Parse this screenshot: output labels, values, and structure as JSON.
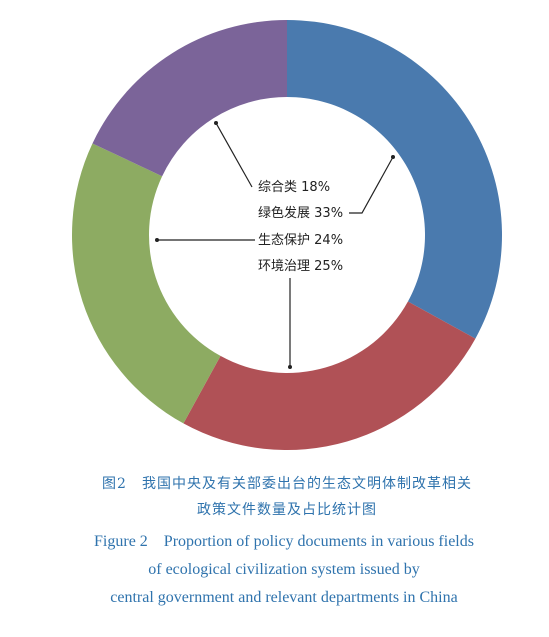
{
  "chart_data": {
    "type": "donut",
    "categories": [
      "绿色发展",
      "环境治理",
      "生态保护",
      "综合类"
    ],
    "values": [
      33,
      25,
      24,
      18
    ],
    "value_labels": [
      "33%",
      "25%",
      "24%",
      "18%"
    ],
    "colors": [
      "#4a7aae",
      "#b05156",
      "#8dab62",
      "#7b6499"
    ],
    "caption_cn": [
      "图2　我国中央及有关部委出台的生态文明体制改革相关",
      "政策文件数量及占比统计图"
    ],
    "caption_en": [
      "Figure 2　Proportion of policy documents in various fields",
      "of ecological civilization system issued by",
      "central government and relevant departments in China"
    ]
  }
}
